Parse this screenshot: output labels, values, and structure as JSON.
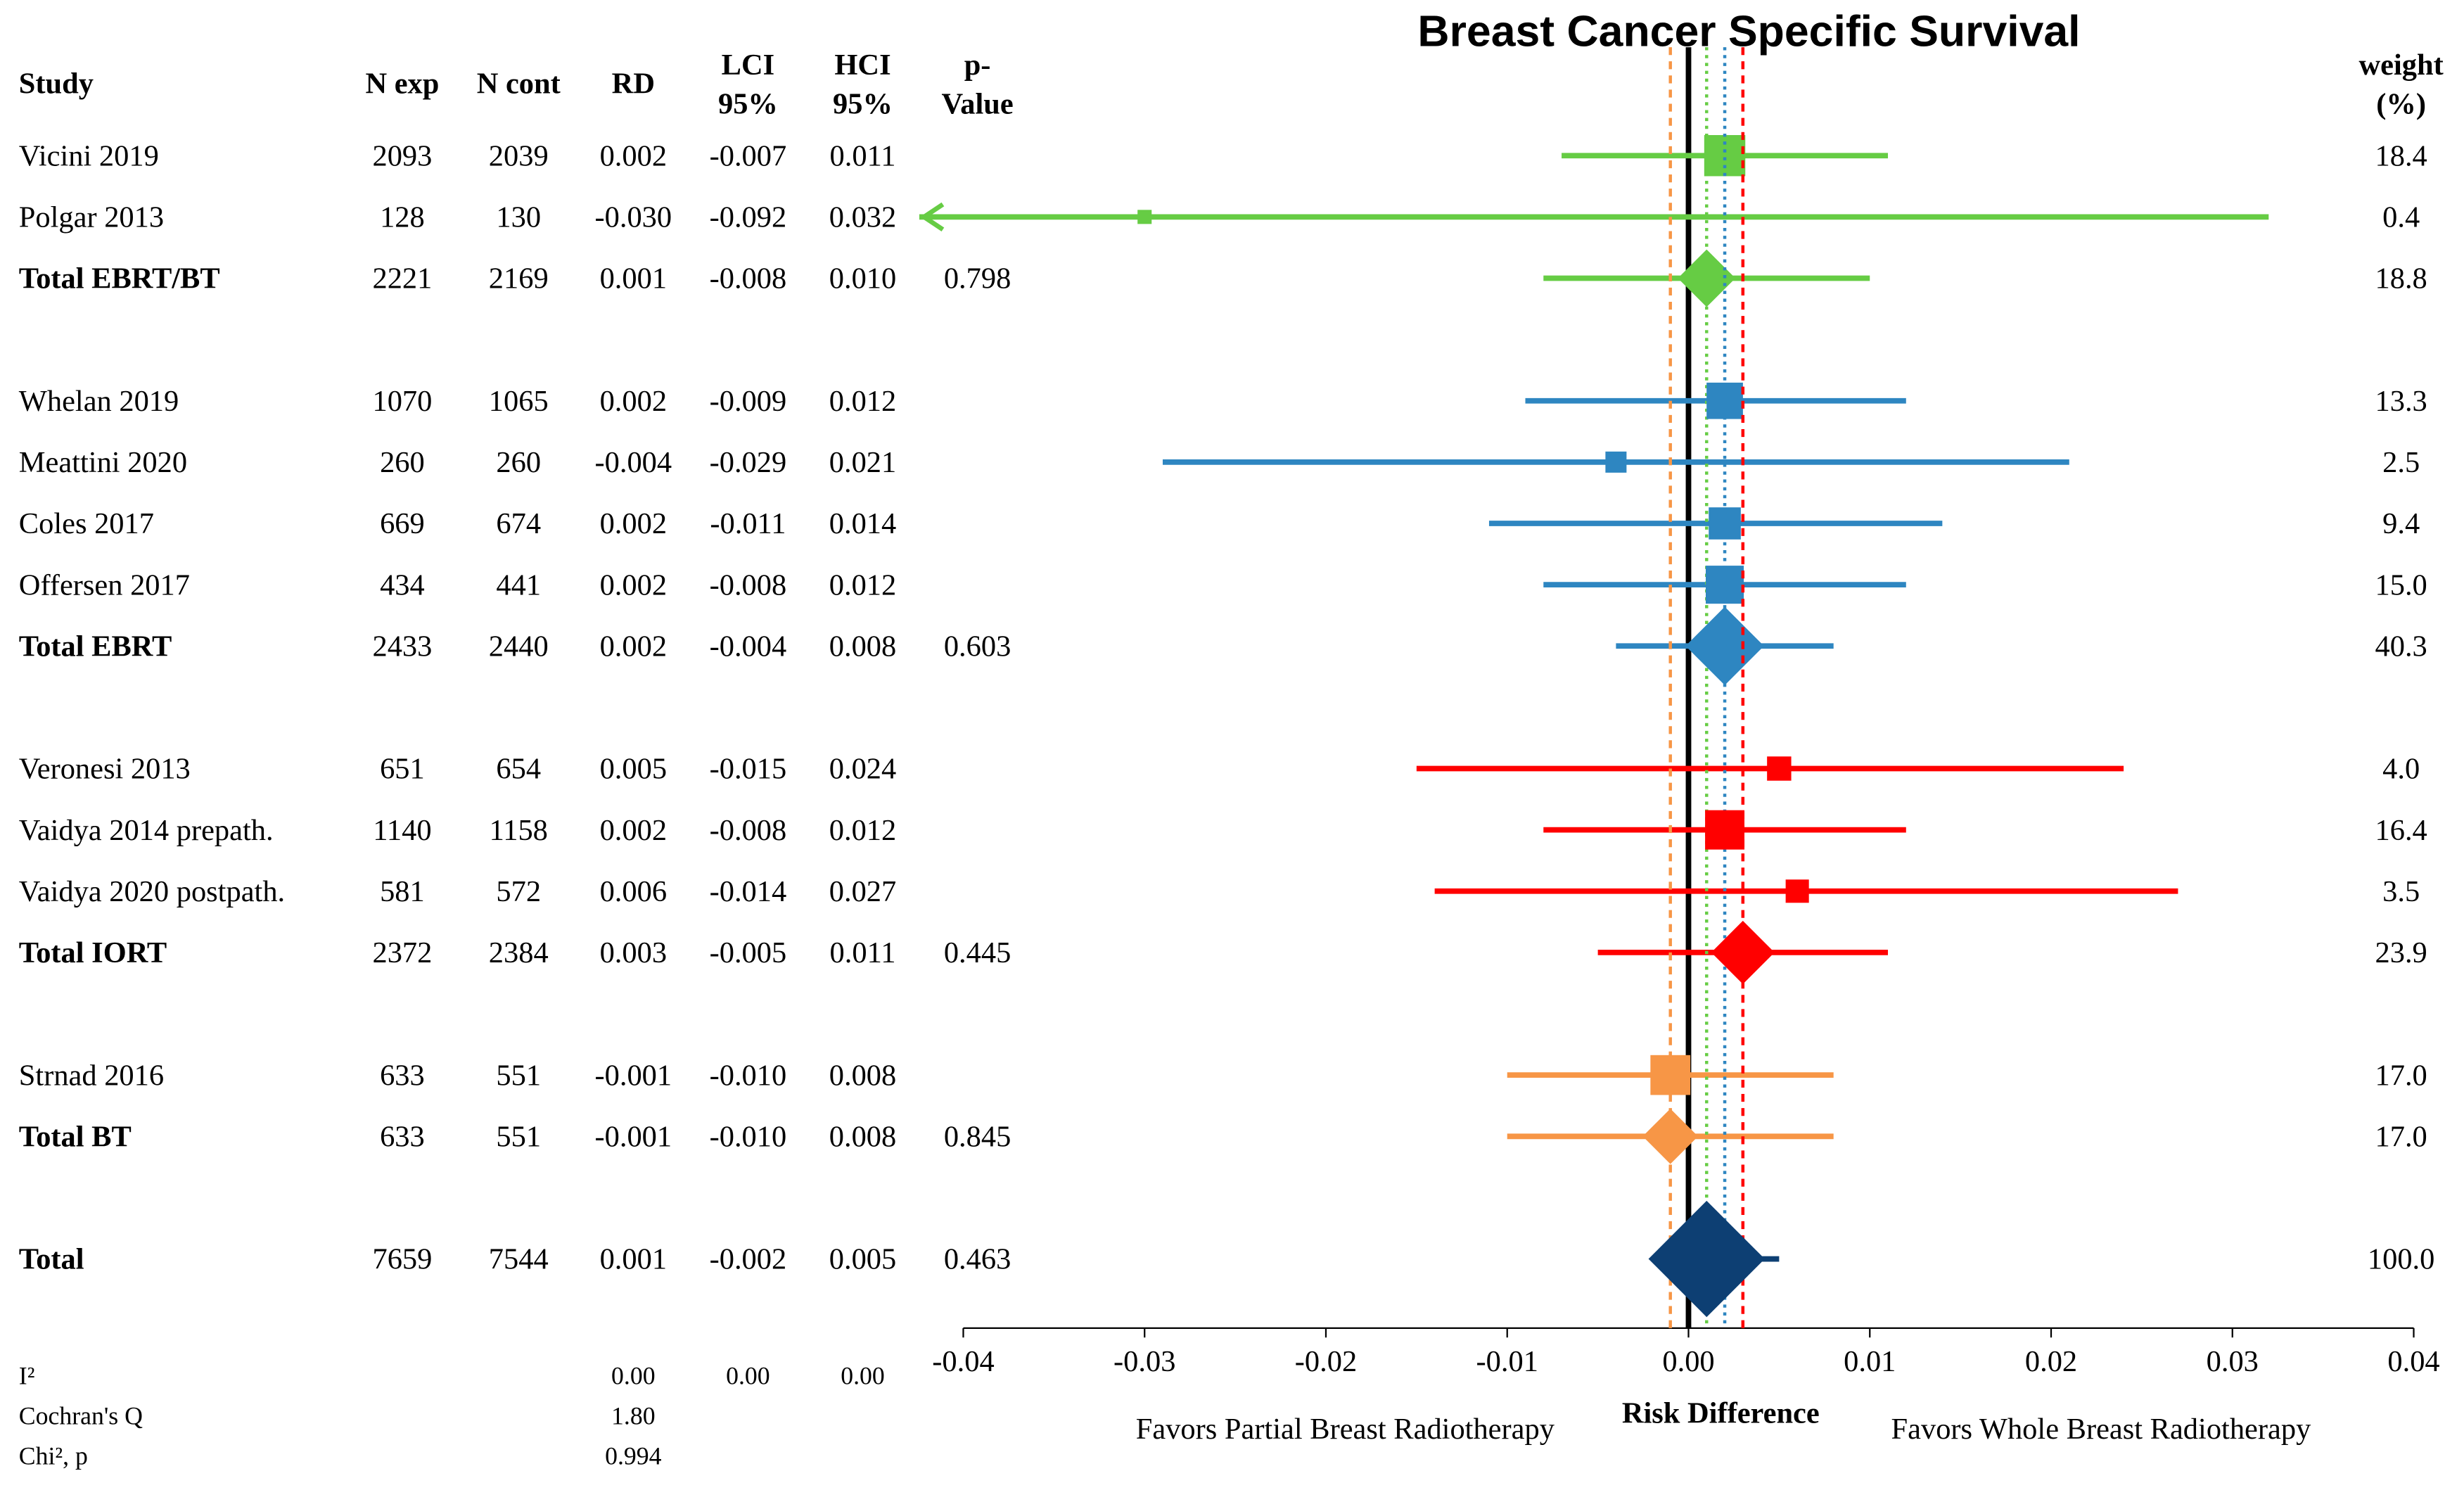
{
  "chart_data": {
    "type": "forest",
    "title": "Breast Cancer Specific Survival",
    "headers": {
      "study": [
        "Study"
      ],
      "n_exp": [
        "N exp"
      ],
      "n_cont": [
        "N cont"
      ],
      "rd": [
        "RD"
      ],
      "lci": [
        "LCI",
        "95%"
      ],
      "hci": [
        "HCI",
        "95%"
      ],
      "p_value": [
        "p-",
        "Value"
      ],
      "weight": [
        "weight",
        "(%)"
      ]
    },
    "groups": [
      {
        "color": "#66cc44",
        "reference_line": "dotted",
        "rows": [
          {
            "study": "Vicini 2019",
            "n_exp": 2093,
            "n_cont": 2039,
            "rd": 0.002,
            "rd_label": "0.002",
            "lci": -0.007,
            "lci_label": "-0.007",
            "hci": 0.011,
            "hci_label": "0.011",
            "p_value": null,
            "weight": 18.4,
            "weight_label": "18.4",
            "total": false
          },
          {
            "study": "Polgar 2013",
            "n_exp": 128,
            "n_cont": 130,
            "rd": -0.03,
            "rd_label": "-0.030",
            "lci": -0.092,
            "lci_label": "-0.092",
            "hci": 0.032,
            "hci_label": "0.032",
            "p_value": null,
            "weight": 0.4,
            "weight_label": "0.4",
            "total": false
          },
          {
            "study": "Total EBRT/BT",
            "n_exp": 2221,
            "n_cont": 2169,
            "rd": 0.001,
            "rd_label": "0.001",
            "lci": -0.008,
            "lci_label": "-0.008",
            "hci": 0.01,
            "hci_label": "0.010",
            "p_value": 0.798,
            "weight": 18.8,
            "weight_label": "18.8",
            "total": true
          }
        ]
      },
      {
        "color": "#2e86c1",
        "reference_line": "dotted",
        "rows": [
          {
            "study": "Whelan 2019",
            "n_exp": 1070,
            "n_cont": 1065,
            "rd": 0.002,
            "rd_label": "0.002",
            "lci": -0.009,
            "lci_label": "-0.009",
            "hci": 0.012,
            "hci_label": "0.012",
            "p_value": null,
            "weight": 13.3,
            "weight_label": "13.3",
            "total": false
          },
          {
            "study": "Meattini 2020",
            "n_exp": 260,
            "n_cont": 260,
            "rd": -0.004,
            "rd_label": "-0.004",
            "lci": -0.029,
            "lci_label": "-0.029",
            "hci": 0.021,
            "hci_label": "0.021",
            "p_value": null,
            "weight": 2.5,
            "weight_label": "2.5",
            "total": false
          },
          {
            "study": "Coles 2017",
            "n_exp": 669,
            "n_cont": 674,
            "rd": 0.002,
            "rd_label": "0.002",
            "lci": -0.011,
            "lci_label": "-0.011",
            "hci": 0.014,
            "hci_label": "0.014",
            "p_value": null,
            "weight": 9.4,
            "weight_label": "9.4",
            "total": false
          },
          {
            "study": "Offersen 2017",
            "n_exp": 434,
            "n_cont": 441,
            "rd": 0.002,
            "rd_label": "0.002",
            "lci": -0.008,
            "lci_label": "-0.008",
            "hci": 0.012,
            "hci_label": "0.012",
            "p_value": null,
            "weight": 15.0,
            "weight_label": "15.0",
            "total": false
          },
          {
            "study": "Total EBRT",
            "n_exp": 2433,
            "n_cont": 2440,
            "rd": 0.002,
            "rd_label": "0.002",
            "lci": -0.004,
            "lci_label": "-0.004",
            "hci": 0.008,
            "hci_label": "0.008",
            "p_value": 0.603,
            "weight": 40.3,
            "weight_label": "40.3",
            "total": true
          }
        ]
      },
      {
        "color": "#ff0000",
        "reference_line": "dashed",
        "rows": [
          {
            "study": "Veronesi 2013",
            "n_exp": 651,
            "n_cont": 654,
            "rd": 0.005,
            "rd_label": "0.005",
            "lci": -0.015,
            "lci_label": "-0.015",
            "hci": 0.024,
            "hci_label": "0.024",
            "p_value": null,
            "weight": 4.0,
            "weight_label": "4.0",
            "total": false
          },
          {
            "study": "Vaidya 2014 prepath.",
            "n_exp": 1140,
            "n_cont": 1158,
            "rd": 0.002,
            "rd_label": "0.002",
            "lci": -0.008,
            "lci_label": "-0.008",
            "hci": 0.012,
            "hci_label": "0.012",
            "p_value": null,
            "weight": 16.4,
            "weight_label": "16.4",
            "total": false
          },
          {
            "study": "Vaidya 2020 postpath.",
            "n_exp": 581,
            "n_cont": 572,
            "rd": 0.006,
            "rd_label": "0.006",
            "lci": -0.014,
            "lci_label": "-0.014",
            "hci": 0.027,
            "hci_label": "0.027",
            "p_value": null,
            "weight": 3.5,
            "weight_label": "3.5",
            "total": false
          },
          {
            "study": "Total IORT",
            "n_exp": 2372,
            "n_cont": 2384,
            "rd": 0.003,
            "rd_label": "0.003",
            "lci": -0.005,
            "lci_label": "-0.005",
            "hci": 0.011,
            "hci_label": "0.011",
            "p_value": 0.445,
            "weight": 23.9,
            "weight_label": "23.9",
            "total": true
          }
        ]
      },
      {
        "color": "#f79646",
        "reference_line": "dashed",
        "rows": [
          {
            "study": "Strnad 2016",
            "n_exp": 633,
            "n_cont": 551,
            "rd": -0.001,
            "rd_label": "-0.001",
            "lci": -0.01,
            "lci_label": "-0.010",
            "hci": 0.008,
            "hci_label": "0.008",
            "p_value": null,
            "weight": 17.0,
            "weight_label": "17.0",
            "total": false
          },
          {
            "study": "Total BT",
            "n_exp": 633,
            "n_cont": 551,
            "rd": -0.001,
            "rd_label": "-0.001",
            "lci": -0.01,
            "lci_label": "-0.010",
            "hci": 0.008,
            "hci_label": "0.008",
            "p_value": 0.845,
            "weight": 17.0,
            "weight_label": "17.0",
            "total": true
          }
        ]
      },
      {
        "color": "#0d3f73",
        "rows": [
          {
            "study": "Total",
            "n_exp": 7659,
            "n_cont": 7544,
            "rd": 0.001,
            "rd_label": "0.001",
            "lci": -0.002,
            "lci_label": "-0.002",
            "hci": 0.005,
            "hci_label": "0.005",
            "p_value": 0.463,
            "weight": 100.0,
            "weight_label": "100.0",
            "total": true
          }
        ]
      }
    ],
    "stats": [
      {
        "label": "I²",
        "values": [
          "0.00",
          "0.00",
          "0.00"
        ]
      },
      {
        "label": "Cochran's Q",
        "values": [
          "1.80"
        ]
      },
      {
        "label": "Chi², p",
        "values": [
          "0.994"
        ]
      }
    ],
    "xlabel": "Risk Difference",
    "left_note": "Favors Partial Breast Radiotherapy",
    "right_note": "Favors Whole Breast Radiotherapy",
    "xlim": [
      -0.04,
      0.04
    ],
    "xticks": [
      -0.04,
      -0.03,
      -0.02,
      -0.01,
      {
        "value": 0,
        "label": "0.00"
      },
      0.01,
      0.02,
      0.03,
      0.04
    ],
    "zero_line": true
  }
}
